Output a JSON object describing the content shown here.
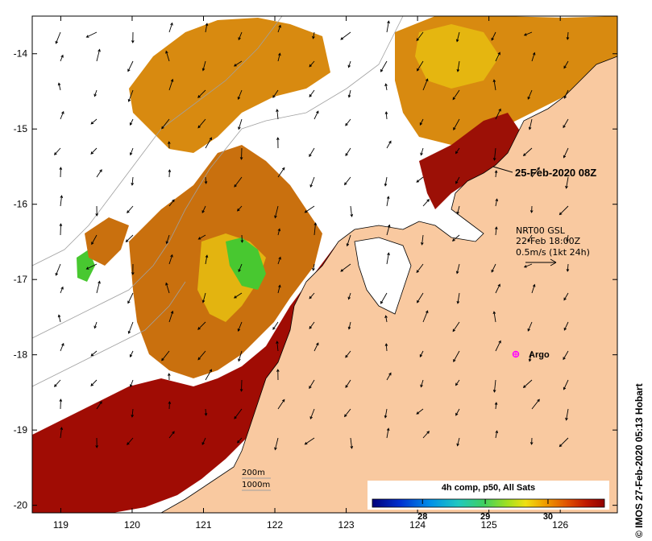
{
  "map": {
    "lon_ticks": [
      119,
      120,
      121,
      122,
      123,
      124,
      125,
      126
    ],
    "lon_tick_labels": [
      "119",
      "120",
      "121",
      "122",
      "123",
      "124",
      "125",
      "126"
    ],
    "lat_ticks": [
      -14,
      -15,
      -16,
      -17,
      -18,
      -19,
      -20
    ],
    "lat_tick_labels": [
      "-14",
      "-15",
      "-16",
      "-17",
      "-18",
      "-19",
      "-20"
    ],
    "lon_range": [
      118.6,
      126.8
    ],
    "lat_range": [
      -20.1,
      -13.5
    ]
  },
  "annotations": {
    "date_label": "25-Feb-2020 08Z",
    "current_model": "NRT00 GSL",
    "current_time": "22-Feb 18:00Z",
    "current_scale": "0.5m/s (1kt 24h)",
    "argo_label": "Argo"
  },
  "isobaths": {
    "label_200": "200m",
    "label_1000": "1000m"
  },
  "colorbar": {
    "title": "4h comp, p50, All Sats",
    "tick_labels": [
      "28",
      "29",
      "30"
    ],
    "tick_values": [
      28,
      29,
      30
    ],
    "range": [
      27.2,
      30.9
    ]
  },
  "credit": "© IMOS 27-Feb-2020 05:13 Hobart",
  "colors": {
    "land": "#f9c9a0",
    "sst_high": "#9a0e04",
    "sst_orange": "#d7820c",
    "sst_yellow": "#e8c20c",
    "sst_green": "#45c230",
    "argo": "#ff00ff",
    "isobath": "#a0a0a0"
  }
}
